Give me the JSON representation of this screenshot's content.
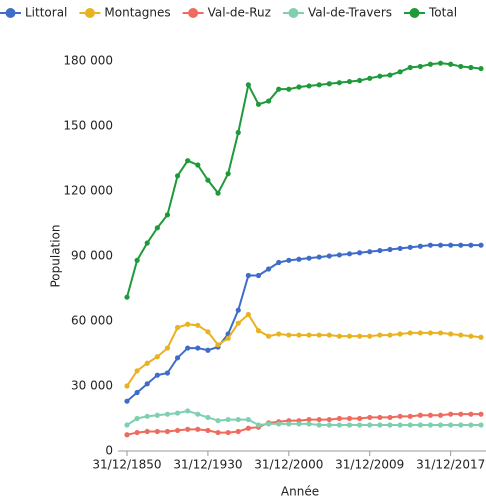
{
  "chart_data": {
    "type": "line",
    "categories": [
      "31/12/1850",
      null,
      null,
      null,
      null,
      null,
      null,
      null,
      "31/12/1930",
      null,
      null,
      null,
      null,
      null,
      null,
      null,
      "31/12/2000",
      null,
      null,
      null,
      null,
      null,
      null,
      null,
      "31/12/2009",
      null,
      null,
      null,
      null,
      null,
      null,
      null,
      "31/12/2017",
      null,
      null,
      null
    ],
    "series": [
      {
        "name": "Littoral",
        "color": "#3f6cc9",
        "values": [
          23000,
          27000,
          31000,
          35000,
          36000,
          43000,
          47500,
          47500,
          46500,
          48000,
          54000,
          65000,
          81000,
          81000,
          84000,
          87000,
          88000,
          88500,
          89000,
          89500,
          90000,
          90500,
          91000,
          91500,
          92000,
          92500,
          93000,
          93500,
          94000,
          94500,
          95000,
          95000,
          95000,
          95000,
          95000,
          95000
        ]
      },
      {
        "name": "Montagnes",
        "color": "#e8b220",
        "values": [
          30000,
          37000,
          40500,
          43500,
          47500,
          57000,
          58500,
          58000,
          55000,
          49000,
          52000,
          59000,
          63000,
          55500,
          53000,
          54000,
          53500,
          53500,
          53500,
          53500,
          53500,
          53000,
          53000,
          53000,
          53000,
          53500,
          53500,
          54000,
          54500,
          54500,
          54500,
          54500,
          54000,
          53500,
          53000,
          52500
        ]
      },
      {
        "name": "Val-de-Ruz",
        "color": "#ef6b5e",
        "values": [
          7500,
          8500,
          9000,
          9000,
          9000,
          9500,
          10000,
          10000,
          9500,
          8500,
          8500,
          9000,
          10500,
          11000,
          13000,
          13500,
          14000,
          14000,
          14500,
          14500,
          14500,
          15000,
          15000,
          15000,
          15500,
          15500,
          15500,
          16000,
          16000,
          16500,
          16500,
          16500,
          17000,
          17000,
          17000,
          17000
        ]
      },
      {
        "name": "Val-de-Travers",
        "color": "#7fd0b0",
        "values": [
          12000,
          15000,
          16000,
          16500,
          17000,
          17500,
          18500,
          17000,
          15500,
          14000,
          14500,
          14500,
          14500,
          12000,
          12500,
          12500,
          12500,
          12500,
          12500,
          12000,
          12000,
          12000,
          12000,
          12000,
          12000,
          12000,
          12000,
          12000,
          12000,
          12000,
          12000,
          12000,
          12000,
          12000,
          12000,
          12000
        ]
      },
      {
        "name": "Total",
        "color": "#1e9a3a",
        "values": [
          71000,
          88000,
          96000,
          103000,
          109000,
          127000,
          134000,
          132000,
          125000,
          119000,
          128000,
          147000,
          169000,
          160000,
          161500,
          167000,
          167000,
          168000,
          168500,
          169000,
          169500,
          170000,
          170500,
          171000,
          172000,
          173000,
          173500,
          175000,
          177000,
          177500,
          178500,
          179000,
          178500,
          177500,
          177000,
          176500
        ]
      }
    ],
    "ylim": [
      0,
      180000
    ],
    "yticks": [
      0,
      {
        "value": 30000,
        "label": "30 000"
      },
      {
        "value": 60000,
        "label": "60 000"
      },
      {
        "value": 90000,
        "label": "90 000"
      },
      {
        "value": 120000,
        "label": "120 000"
      },
      {
        "value": 150000,
        "label": "150 000"
      },
      {
        "value": 180000,
        "label": "180 000"
      }
    ],
    "x_label": "Année",
    "y_label": "Population"
  }
}
